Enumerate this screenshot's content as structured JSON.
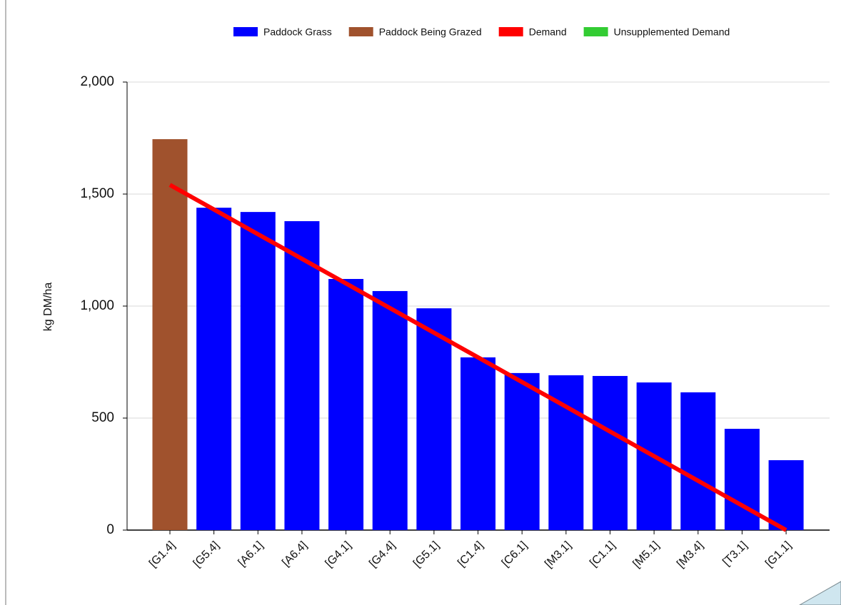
{
  "chart_data": {
    "type": "bar",
    "y_label": "kg DM/ha",
    "categories": [
      "[G1.4]",
      "[G5.4]",
      "[A6.1]",
      "[A6.4]",
      "[G4.1]",
      "[G4.4]",
      "[G5.1]",
      "[C1.4]",
      "[C6.1]",
      "[M3.1]",
      "[C1.1]",
      "[M5.1]",
      "[M3.4]",
      "[T3.1]",
      "[G1.1]"
    ],
    "series": [
      {
        "name": "Paddock Grass",
        "color": "#0000ff",
        "type": "bar",
        "values": [
          null,
          1439,
          1420,
          1379,
          1121,
          1067,
          990,
          771,
          701,
          691,
          688,
          659,
          615,
          452,
          312
        ]
      },
      {
        "name": "Paddock Being Grazed",
        "color": "#a0522d",
        "type": "bar",
        "values": [
          1745,
          null,
          null,
          null,
          null,
          null,
          null,
          null,
          null,
          null,
          null,
          null,
          null,
          null,
          null
        ]
      },
      {
        "name": "Demand",
        "color": "#ff0000",
        "type": "line",
        "values": [
          1541,
          1431,
          1321,
          1211,
          1101,
          991,
          881,
          771,
          661,
          551,
          440,
          330,
          220,
          110,
          0
        ]
      },
      {
        "name": "Unsupplemented Demand",
        "color": "#33cc33",
        "type": "line",
        "values": [
          null,
          null,
          null,
          null,
          null,
          null,
          null,
          null,
          null,
          null,
          null,
          null,
          null,
          null,
          null
        ]
      }
    ],
    "ylim": [
      0,
      2000
    ],
    "yticks": [
      0,
      {
        "value": 500,
        "label": "500"
      },
      {
        "value": 1000,
        "label": "1,000"
      },
      {
        "value": 1500,
        "label": "1,500"
      },
      {
        "value": 2000,
        "label": "2,000"
      }
    ],
    "grid": true,
    "legend": "top"
  }
}
